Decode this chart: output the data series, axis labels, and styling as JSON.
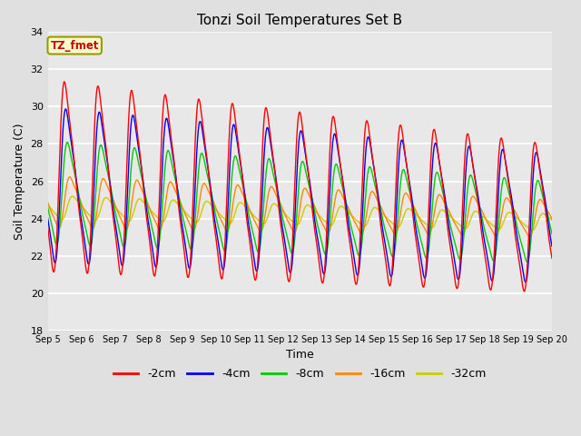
{
  "title": "Tonzi Soil Temperatures Set B",
  "xlabel": "Time",
  "ylabel": "Soil Temperature (C)",
  "annotation_text": "TZ_fmet",
  "annotation_bg": "#ffffcc",
  "annotation_border": "#999900",
  "annotation_text_color": "#cc0000",
  "ylim": [
    18,
    34
  ],
  "yticks": [
    18,
    20,
    22,
    24,
    26,
    28,
    30,
    32,
    34
  ],
  "bg_color": "#e0e0e0",
  "plot_bg": "#e8e8e8",
  "grid_color": "#ffffff",
  "line_colors": {
    "-2cm": "#ff0000",
    "-4cm": "#0000ff",
    "-8cm": "#00cc00",
    "-16cm": "#ff8800",
    "-32cm": "#cccc00"
  },
  "legend_order": [
    "-2cm",
    "-4cm",
    "-8cm",
    "-16cm",
    "-32cm"
  ],
  "n_days": 15,
  "start_day": 5
}
